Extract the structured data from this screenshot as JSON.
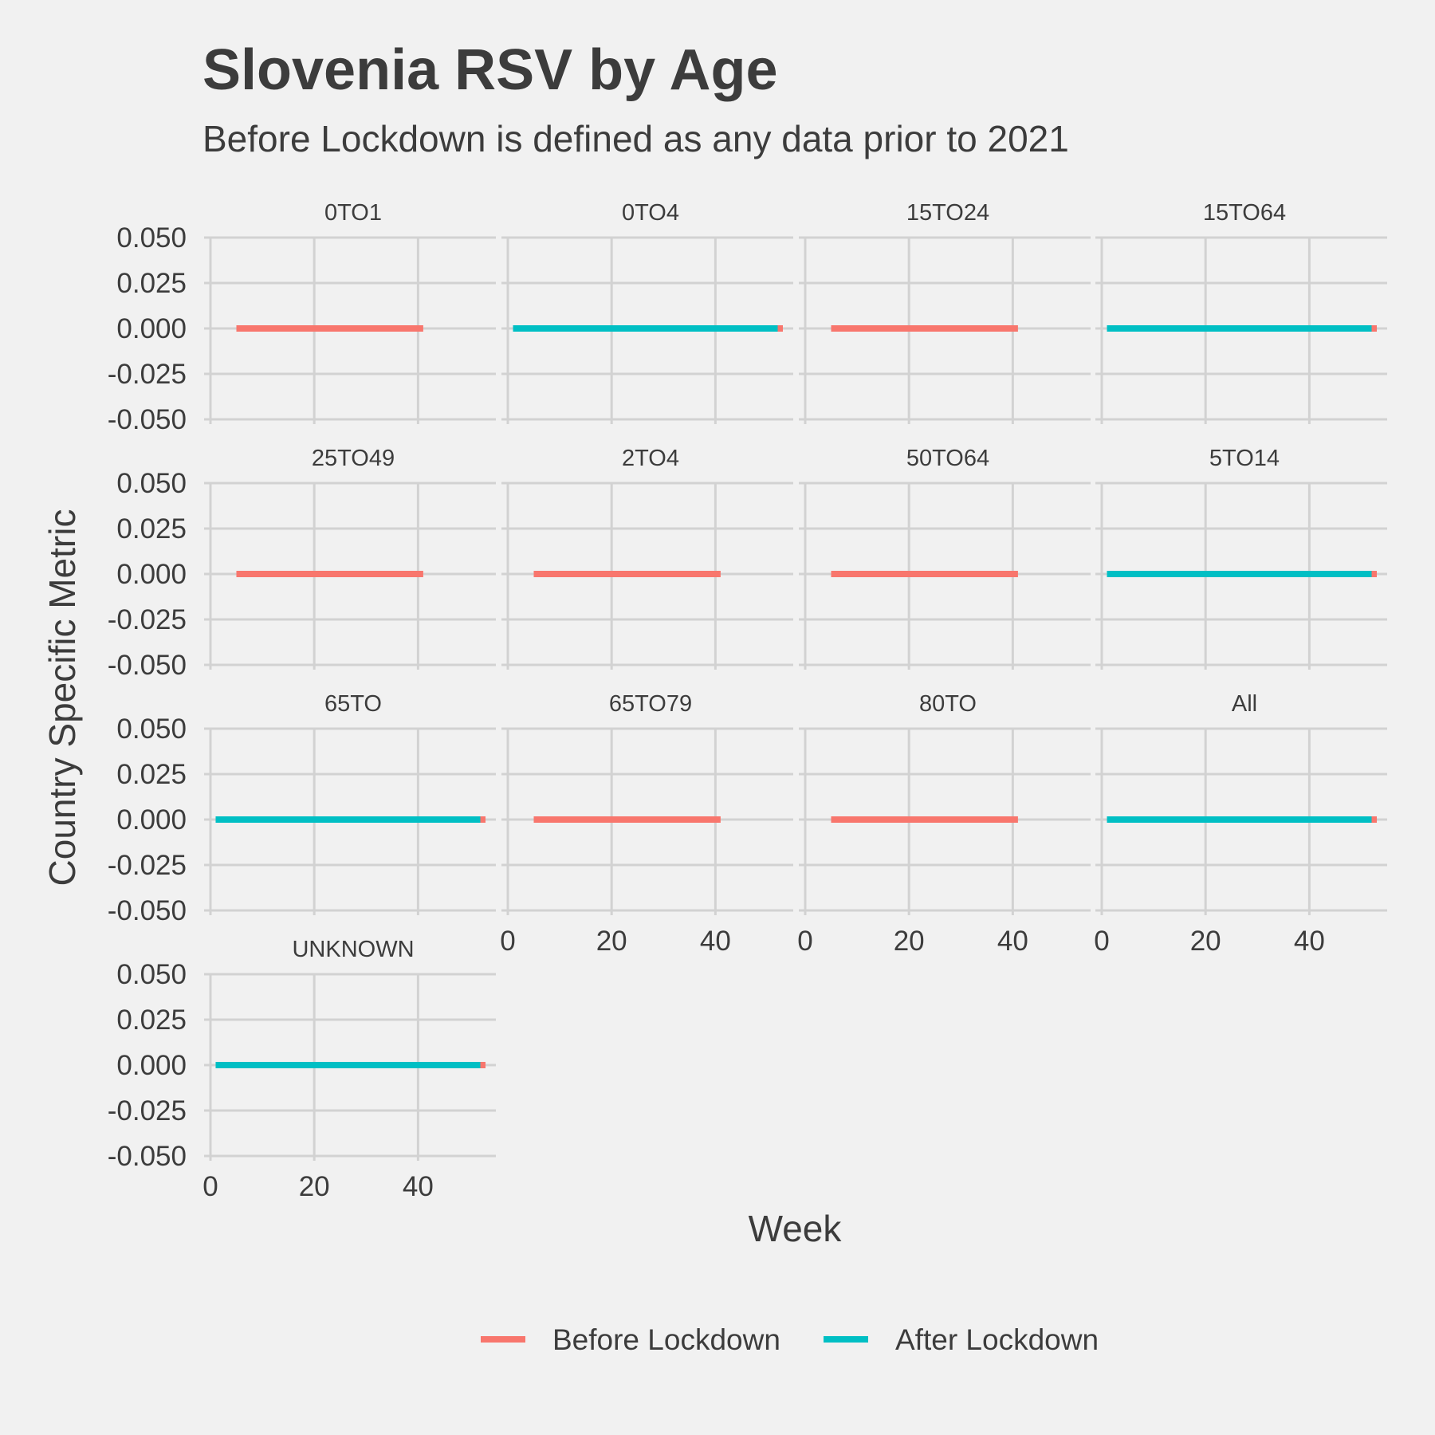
{
  "chart_data": {
    "type": "line",
    "title": "Slovenia RSV by Age",
    "subtitle": "Before Lockdown is defined as any data prior to 2021",
    "xlabel": "Week",
    "ylabel": "Country Specific Metric",
    "xlim": [
      0,
      55
    ],
    "ylim": [
      -0.05,
      0.05
    ],
    "x_ticks": [
      0,
      20,
      40
    ],
    "x_tick_labels": [
      "0",
      "20",
      "40"
    ],
    "y_ticks": [
      0.05,
      0.025,
      0,
      -0.025,
      -0.05
    ],
    "y_tick_labels": [
      "0.050",
      "0.025",
      "0.000",
      "-0.025",
      "-0.050"
    ],
    "grid": true,
    "legend_position": "bottom",
    "series_styles": [
      {
        "name": "Before Lockdown",
        "color": "#f8766d"
      },
      {
        "name": "After Lockdown",
        "color": "#00bfc4"
      }
    ],
    "facets": [
      {
        "label": "0TO1",
        "series": [
          {
            "name": "Before Lockdown",
            "x": [
              5,
              41
            ],
            "y": [
              0,
              0
            ]
          }
        ]
      },
      {
        "label": "0TO4",
        "series": [
          {
            "name": "Before Lockdown",
            "x": [
              1,
              53
            ],
            "y": [
              0,
              0
            ]
          },
          {
            "name": "After Lockdown",
            "x": [
              1,
              52
            ],
            "y": [
              0,
              0
            ]
          }
        ]
      },
      {
        "label": "15TO24",
        "series": [
          {
            "name": "Before Lockdown",
            "x": [
              5,
              41
            ],
            "y": [
              0,
              0
            ]
          }
        ]
      },
      {
        "label": "15TO64",
        "series": [
          {
            "name": "Before Lockdown",
            "x": [
              1,
              53
            ],
            "y": [
              0,
              0
            ]
          },
          {
            "name": "After Lockdown",
            "x": [
              1,
              52
            ],
            "y": [
              0,
              0
            ]
          }
        ]
      },
      {
        "label": "25TO49",
        "series": [
          {
            "name": "Before Lockdown",
            "x": [
              5,
              41
            ],
            "y": [
              0,
              0
            ]
          }
        ]
      },
      {
        "label": "2TO4",
        "series": [
          {
            "name": "Before Lockdown",
            "x": [
              5,
              41
            ],
            "y": [
              0,
              0
            ]
          }
        ]
      },
      {
        "label": "50TO64",
        "series": [
          {
            "name": "Before Lockdown",
            "x": [
              5,
              41
            ],
            "y": [
              0,
              0
            ]
          }
        ]
      },
      {
        "label": "5TO14",
        "series": [
          {
            "name": "Before Lockdown",
            "x": [
              1,
              53
            ],
            "y": [
              0,
              0
            ]
          },
          {
            "name": "After Lockdown",
            "x": [
              1,
              52
            ],
            "y": [
              0,
              0
            ]
          }
        ]
      },
      {
        "label": "65TO",
        "series": [
          {
            "name": "Before Lockdown",
            "x": [
              1,
              53
            ],
            "y": [
              0,
              0
            ]
          },
          {
            "name": "After Lockdown",
            "x": [
              1,
              52
            ],
            "y": [
              0,
              0
            ]
          }
        ]
      },
      {
        "label": "65TO79",
        "series": [
          {
            "name": "Before Lockdown",
            "x": [
              5,
              41
            ],
            "y": [
              0,
              0
            ]
          }
        ]
      },
      {
        "label": "80TO",
        "series": [
          {
            "name": "Before Lockdown",
            "x": [
              5,
              41
            ],
            "y": [
              0,
              0
            ]
          }
        ]
      },
      {
        "label": "All",
        "series": [
          {
            "name": "Before Lockdown",
            "x": [
              1,
              53
            ],
            "y": [
              0,
              0
            ]
          },
          {
            "name": "After Lockdown",
            "x": [
              1,
              52
            ],
            "y": [
              0,
              0
            ]
          }
        ]
      },
      {
        "label": "UNKNOWN",
        "series": [
          {
            "name": "Before Lockdown",
            "x": [
              1,
              53
            ],
            "y": [
              0,
              0
            ]
          },
          {
            "name": "After Lockdown",
            "x": [
              1,
              52
            ],
            "y": [
              0,
              0
            ]
          }
        ]
      }
    ]
  },
  "colors": {
    "background": "#f1f1f1",
    "grid": "#d2d2d2",
    "text": "#3c3c3c"
  }
}
